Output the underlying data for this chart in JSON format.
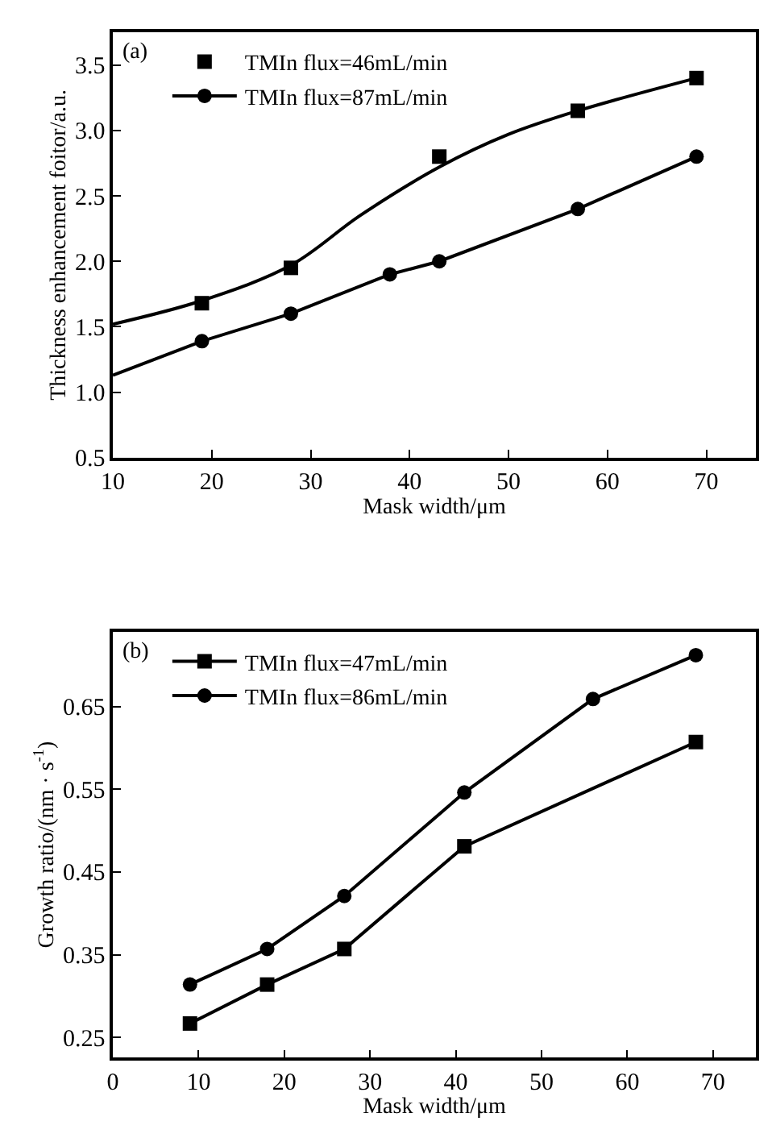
{
  "chart_data": [
    {
      "type": "line",
      "xlabel": "Mask width/μm",
      "ylabel": "Thickness enhancement foitor/a.u.",
      "annotations": [
        "(a)"
      ],
      "xlim": [
        10,
        75
      ],
      "xticks": [
        10,
        20,
        30,
        40,
        50,
        60,
        70
      ],
      "ylim": [
        0.5,
        3.75
      ],
      "yticks": [
        0.5,
        {
          "value": 1,
          "label": "1.0"
        },
        1.5,
        {
          "value": 2,
          "label": "2.0"
        },
        2.5,
        {
          "value": 3,
          "label": "3.0"
        },
        3.5
      ],
      "legend": "top left",
      "series": [
        {
          "name": "TMIn flux=46mL/min",
          "color": "#000000",
          "type": "scatter",
          "marker": "square",
          "x": [
            19,
            28,
            43,
            57,
            69
          ],
          "values": [
            1.68,
            1.95,
            2.8,
            3.15,
            3.4
          ]
        },
        {
          "name": "TMIn flux=87mL/min",
          "color": "#000000",
          "type": "line",
          "marker": "circle",
          "x": [
            19,
            28,
            38,
            43,
            57,
            69
          ],
          "values": [
            1.39,
            1.6,
            1.9,
            2.0,
            2.4,
            2.8
          ]
        },
        {
          "color": "#000000",
          "type": "line",
          "marker": "none",
          "x": [
            10,
            19,
            28,
            35,
            43,
            50,
            57,
            69
          ],
          "values": [
            1.52,
            1.7,
            1.97,
            2.35,
            2.72,
            2.97,
            3.15,
            3.4
          ]
        },
        {
          "color": "#000000",
          "type": "line",
          "marker": "none",
          "x": [
            10,
            19
          ],
          "values": [
            1.13,
            1.39
          ]
        }
      ]
    },
    {
      "type": "line",
      "xlabel": "Mask width/μm",
      "ylabel": "Growth ratio/(nm · s$^{-1}$)",
      "annotations": [
        "(b)"
      ],
      "xlim": [
        0,
        75
      ],
      "xticks": [
        0,
        10,
        20,
        30,
        40,
        50,
        60,
        70
      ],
      "ylim": [
        0.226,
        0.74
      ],
      "yticks": [
        0.25,
        0.35,
        0.45,
        0.55,
        0.65
      ],
      "legend": "top left",
      "series": [
        {
          "name": "TMIn flux=47mL/min",
          "color": "#000000",
          "marker": "square",
          "x": [
            9,
            18,
            27,
            41,
            68
          ],
          "values": [
            0.267,
            0.314,
            0.357,
            0.481,
            0.607
          ]
        },
        {
          "name": "TMIn flux=86mL/min",
          "color": "#000000",
          "marker": "circle",
          "x": [
            9,
            18,
            27,
            41,
            56,
            68
          ],
          "values": [
            0.314,
            0.357,
            0.421,
            0.546,
            0.659,
            0.712
          ]
        }
      ]
    }
  ]
}
